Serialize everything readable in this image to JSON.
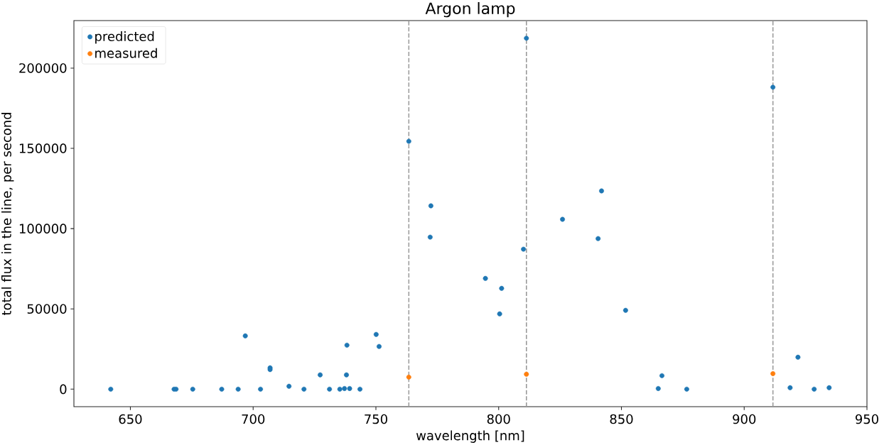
{
  "chart_data": {
    "type": "scatter",
    "title": "Argon lamp",
    "xlabel": "wavelength [nm]",
    "ylabel": "total flux in the line, per second",
    "series": [
      {
        "name": "predicted",
        "color": "#1f77b4",
        "x": [
          642.0,
          667.8,
          668.6,
          675.4,
          687.2,
          693.9,
          696.8,
          703.0,
          706.9,
          706.9,
          714.6,
          720.7,
          727.3,
          731.1,
          735.3,
          737.2,
          738.0,
          738.2,
          739.3,
          743.5,
          750.1,
          751.3,
          763.4,
          772.1,
          772.4,
          794.6,
          800.4,
          801.2,
          810.1,
          811.3,
          826.0,
          840.5,
          841.9,
          851.7,
          865.0,
          866.5,
          876.6,
          911.7,
          918.7,
          921.9,
          928.5,
          934.6
        ],
        "values": [
          0,
          0,
          0,
          0,
          0,
          0,
          33200,
          0,
          13300,
          12200,
          1800,
          0,
          8900,
          0,
          0,
          400,
          8900,
          27400,
          400,
          0,
          34100,
          26600,
          154400,
          94700,
          114200,
          69000,
          46900,
          62800,
          87200,
          218600,
          105800,
          93800,
          123500,
          49100,
          400,
          8400,
          0,
          188100,
          900,
          19900,
          0,
          900
        ]
      },
      {
        "name": "measured",
        "color": "#ff7f0e",
        "x": [
          763.4,
          811.3,
          911.7
        ],
        "values": [
          7500,
          9300,
          9700
        ]
      }
    ],
    "xlim": [
      627,
      950
    ],
    "ylim": [
      -10900,
      229600
    ],
    "xticks": [
      650,
      700,
      750,
      800,
      850,
      900,
      950
    ],
    "yticks": [
      0,
      50000,
      100000,
      150000,
      200000
    ],
    "ref_lines": [
      {
        "axis": "x",
        "value": 763.4,
        "color": "#999999",
        "line_style": "dashed"
      },
      {
        "axis": "x",
        "value": 811.3,
        "color": "#999999",
        "line_style": "dashed"
      },
      {
        "axis": "x",
        "value": 911.7,
        "color": "#999999",
        "line_style": "dashed"
      }
    ],
    "legend": "top left",
    "marker": "circle"
  }
}
